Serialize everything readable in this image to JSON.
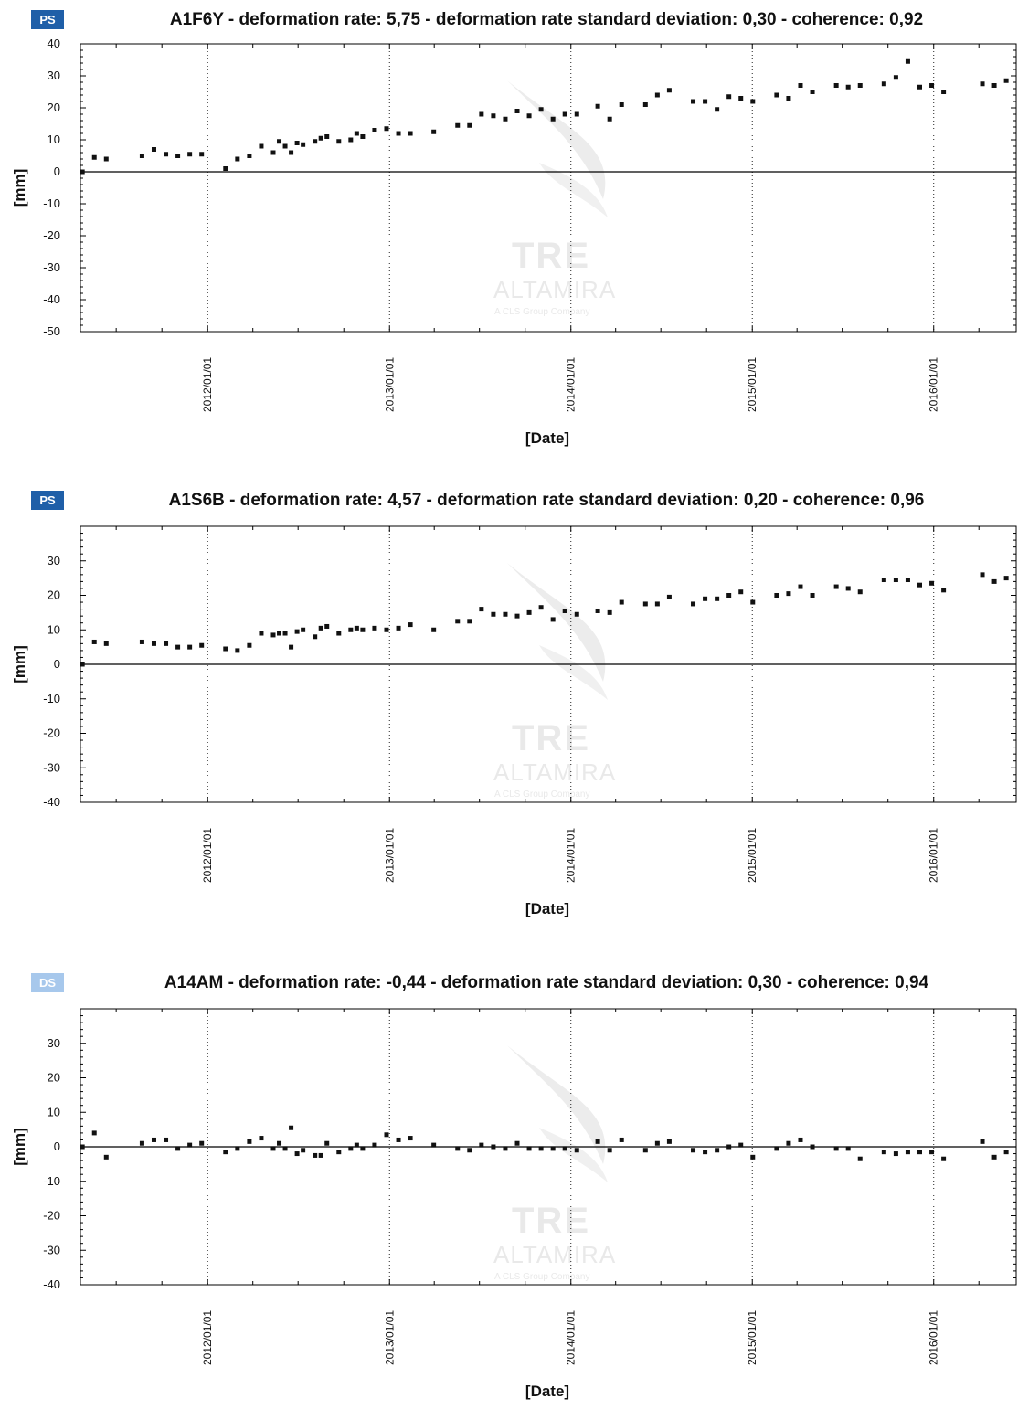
{
  "watermark": {
    "line1": "TRE",
    "line2": "ALTAMIRA",
    "line3": "A CLS Group Company"
  },
  "colors": {
    "ps_badge": "#1f5fa8",
    "ds_badge": "#a7c8ec",
    "points": "#111111"
  },
  "chart_data": [
    {
      "type": "scatter",
      "badge": "PS",
      "title": "A1F6Y - deformation rate: 5,75 - deformation rate standard deviation: 0,30 - coherence: 0,92",
      "xlabel": "[Date]",
      "ylabel": "[mm]",
      "ylim": [
        -50,
        40
      ],
      "yticks": [
        40,
        30,
        20,
        10,
        0,
        -10,
        -20,
        -30,
        -40,
        -50
      ],
      "xlim": [
        "2011-04-20",
        "2016-06-15"
      ],
      "xticks": [
        "2012/01/01",
        "2013/01/01",
        "2014/01/01",
        "2015/01/01",
        "2016/01/01"
      ],
      "grid": "vertical dotted lines at year ticks",
      "points": [
        [
          "2011-04-24",
          0
        ],
        [
          "2011-05-18",
          4.5
        ],
        [
          "2011-06-11",
          4
        ],
        [
          "2011-08-22",
          5
        ],
        [
          "2011-09-15",
          7
        ],
        [
          "2011-10-09",
          5.5
        ],
        [
          "2011-11-02",
          5
        ],
        [
          "2011-11-26",
          5.5
        ],
        [
          "2011-12-20",
          5.5
        ],
        [
          "2012-02-06",
          1
        ],
        [
          "2012-03-01",
          4
        ],
        [
          "2012-03-25",
          5
        ],
        [
          "2012-04-18",
          8
        ],
        [
          "2012-05-12",
          6
        ],
        [
          "2012-05-24",
          9.5
        ],
        [
          "2012-06-05",
          8
        ],
        [
          "2012-06-17",
          6
        ],
        [
          "2012-06-29",
          9
        ],
        [
          "2012-07-11",
          8.5
        ],
        [
          "2012-08-04",
          9.5
        ],
        [
          "2012-08-16",
          10.5
        ],
        [
          "2012-08-28",
          11
        ],
        [
          "2012-09-21",
          9.5
        ],
        [
          "2012-10-15",
          10
        ],
        [
          "2012-10-27",
          12
        ],
        [
          "2012-11-08",
          11
        ],
        [
          "2012-12-02",
          13
        ],
        [
          "2012-12-26",
          13.5
        ],
        [
          "2013-01-19",
          12
        ],
        [
          "2013-02-12",
          12
        ],
        [
          "2013-03-31",
          12.5
        ],
        [
          "2013-05-18",
          14.5
        ],
        [
          "2013-06-11",
          14.5
        ],
        [
          "2013-07-05",
          18
        ],
        [
          "2013-07-29",
          17.5
        ],
        [
          "2013-08-22",
          16.5
        ],
        [
          "2013-09-15",
          19
        ],
        [
          "2013-10-09",
          17.5
        ],
        [
          "2013-11-02",
          19.5
        ],
        [
          "2013-11-26",
          16.5
        ],
        [
          "2013-12-20",
          18
        ],
        [
          "2014-01-13",
          18
        ],
        [
          "2014-02-24",
          20.5
        ],
        [
          "2014-03-20",
          16.5
        ],
        [
          "2014-04-13",
          21
        ],
        [
          "2014-05-31",
          21
        ],
        [
          "2014-06-24",
          24
        ],
        [
          "2014-07-18",
          25.5
        ],
        [
          "2014-09-04",
          22
        ],
        [
          "2014-09-28",
          22
        ],
        [
          "2014-10-22",
          19.5
        ],
        [
          "2014-11-15",
          23.5
        ],
        [
          "2014-12-09",
          23
        ],
        [
          "2015-01-02",
          22
        ],
        [
          "2015-02-19",
          24
        ],
        [
          "2015-03-15",
          23
        ],
        [
          "2015-04-08",
          27
        ],
        [
          "2015-05-02",
          25
        ],
        [
          "2015-06-19",
          27
        ],
        [
          "2015-07-13",
          26.5
        ],
        [
          "2015-08-06",
          27
        ],
        [
          "2015-09-23",
          27.5
        ],
        [
          "2015-10-17",
          29.5
        ],
        [
          "2015-11-10",
          34.5
        ],
        [
          "2015-12-04",
          26.5
        ],
        [
          "2015-12-28",
          27
        ],
        [
          "2016-01-21",
          25
        ],
        [
          "2016-04-08",
          27.5
        ],
        [
          "2016-05-02",
          27
        ],
        [
          "2016-05-26",
          28.5
        ]
      ]
    },
    {
      "type": "scatter",
      "badge": "PS",
      "title": "A1S6B - deformation rate: 4,57 - deformation rate standard deviation: 0,20 - coherence: 0,96",
      "xlabel": "[Date]",
      "ylabel": "[mm]",
      "ylim": [
        -40,
        40
      ],
      "yticks": [
        30,
        20,
        10,
        0,
        -10,
        -20,
        -30,
        -40
      ],
      "xlim": [
        "2011-04-20",
        "2016-06-15"
      ],
      "xticks": [
        "2012/01/01",
        "2013/01/01",
        "2014/01/01",
        "2015/01/01",
        "2016/01/01"
      ],
      "grid": "vertical dotted lines at year ticks",
      "points": [
        [
          "2011-04-24",
          0
        ],
        [
          "2011-05-18",
          6.5
        ],
        [
          "2011-06-11",
          6
        ],
        [
          "2011-08-22",
          6.5
        ],
        [
          "2011-09-15",
          6
        ],
        [
          "2011-10-09",
          6
        ],
        [
          "2011-11-02",
          5
        ],
        [
          "2011-11-26",
          5
        ],
        [
          "2011-12-20",
          5.5
        ],
        [
          "2012-02-06",
          4.5
        ],
        [
          "2012-03-01",
          4
        ],
        [
          "2012-03-25",
          5.5
        ],
        [
          "2012-04-18",
          9
        ],
        [
          "2012-05-12",
          8.5
        ],
        [
          "2012-05-24",
          9
        ],
        [
          "2012-06-05",
          9
        ],
        [
          "2012-06-17",
          5
        ],
        [
          "2012-06-29",
          9.5
        ],
        [
          "2012-07-11",
          10
        ],
        [
          "2012-08-04",
          8
        ],
        [
          "2012-08-16",
          10.5
        ],
        [
          "2012-08-28",
          11
        ],
        [
          "2012-09-21",
          9
        ],
        [
          "2012-10-15",
          10
        ],
        [
          "2012-10-27",
          10.5
        ],
        [
          "2012-11-08",
          10
        ],
        [
          "2012-12-02",
          10.5
        ],
        [
          "2012-12-26",
          10
        ],
        [
          "2013-01-19",
          10.5
        ],
        [
          "2013-02-12",
          11.5
        ],
        [
          "2013-03-31",
          10
        ],
        [
          "2013-05-18",
          12.5
        ],
        [
          "2013-06-11",
          12.5
        ],
        [
          "2013-07-05",
          16
        ],
        [
          "2013-07-29",
          14.5
        ],
        [
          "2013-08-22",
          14.5
        ],
        [
          "2013-09-15",
          14
        ],
        [
          "2013-10-09",
          15
        ],
        [
          "2013-11-02",
          16.5
        ],
        [
          "2013-11-26",
          13
        ],
        [
          "2013-12-20",
          15.5
        ],
        [
          "2014-01-13",
          14.5
        ],
        [
          "2014-02-24",
          15.5
        ],
        [
          "2014-03-20",
          15
        ],
        [
          "2014-04-13",
          18
        ],
        [
          "2014-05-31",
          17.5
        ],
        [
          "2014-06-24",
          17.5
        ],
        [
          "2014-07-18",
          19.5
        ],
        [
          "2014-09-04",
          17.5
        ],
        [
          "2014-09-28",
          19
        ],
        [
          "2014-10-22",
          19
        ],
        [
          "2014-11-15",
          20
        ],
        [
          "2014-12-09",
          21
        ],
        [
          "2015-01-02",
          18
        ],
        [
          "2015-02-19",
          20
        ],
        [
          "2015-03-15",
          20.5
        ],
        [
          "2015-04-08",
          22.5
        ],
        [
          "2015-05-02",
          20
        ],
        [
          "2015-06-19",
          22.5
        ],
        [
          "2015-07-13",
          22
        ],
        [
          "2015-08-06",
          21
        ],
        [
          "2015-09-23",
          24.5
        ],
        [
          "2015-10-17",
          24.5
        ],
        [
          "2015-11-10",
          24.5
        ],
        [
          "2015-12-04",
          23
        ],
        [
          "2015-12-28",
          23.5
        ],
        [
          "2016-01-21",
          21.5
        ],
        [
          "2016-04-08",
          26
        ],
        [
          "2016-05-02",
          24
        ],
        [
          "2016-05-26",
          25
        ]
      ]
    },
    {
      "type": "scatter",
      "badge": "DS",
      "title": "A14AM - deformation rate: -0,44 - deformation rate standard deviation: 0,30 - coherence: 0,94",
      "xlabel": "[Date]",
      "ylabel": "[mm]",
      "ylim": [
        -40,
        40
      ],
      "yticks": [
        30,
        20,
        10,
        0,
        -10,
        -20,
        -30,
        -40
      ],
      "xlim": [
        "2011-04-20",
        "2016-06-15"
      ],
      "xticks": [
        "2012/01/01",
        "2013/01/01",
        "2014/01/01",
        "2015/01/01",
        "2016/01/01"
      ],
      "grid": "vertical dotted lines at year ticks",
      "points": [
        [
          "2011-04-24",
          0
        ],
        [
          "2011-05-18",
          4
        ],
        [
          "2011-06-11",
          -3
        ],
        [
          "2011-08-22",
          1
        ],
        [
          "2011-09-15",
          2
        ],
        [
          "2011-10-09",
          2
        ],
        [
          "2011-11-02",
          -0.5
        ],
        [
          "2011-11-26",
          0.5
        ],
        [
          "2011-12-20",
          1
        ],
        [
          "2012-02-06",
          -1.5
        ],
        [
          "2012-03-01",
          -0.5
        ],
        [
          "2012-03-25",
          1.5
        ],
        [
          "2012-04-18",
          2.5
        ],
        [
          "2012-05-12",
          -0.5
        ],
        [
          "2012-05-24",
          1
        ],
        [
          "2012-06-05",
          -0.5
        ],
        [
          "2012-06-17",
          5.5
        ],
        [
          "2012-06-29",
          -2
        ],
        [
          "2012-07-11",
          -1
        ],
        [
          "2012-08-04",
          -2.5
        ],
        [
          "2012-08-16",
          -2.5
        ],
        [
          "2012-08-28",
          1
        ],
        [
          "2012-09-21",
          -1.5
        ],
        [
          "2012-10-15",
          -0.5
        ],
        [
          "2012-10-27",
          0.5
        ],
        [
          "2012-11-08",
          -0.5
        ],
        [
          "2012-12-02",
          0.5
        ],
        [
          "2012-12-26",
          3.5
        ],
        [
          "2013-01-19",
          2
        ],
        [
          "2013-02-12",
          2.5
        ],
        [
          "2013-03-31",
          0.5
        ],
        [
          "2013-05-18",
          -0.5
        ],
        [
          "2013-06-11",
          -1
        ],
        [
          "2013-07-05",
          0.5
        ],
        [
          "2013-07-29",
          0
        ],
        [
          "2013-08-22",
          -0.5
        ],
        [
          "2013-09-15",
          1
        ],
        [
          "2013-10-09",
          -0.5
        ],
        [
          "2013-11-02",
          -0.5
        ],
        [
          "2013-11-26",
          -0.5
        ],
        [
          "2013-12-20",
          -0.5
        ],
        [
          "2014-01-13",
          -1
        ],
        [
          "2014-02-24",
          1.5
        ],
        [
          "2014-03-20",
          -1
        ],
        [
          "2014-04-13",
          2
        ],
        [
          "2014-05-31",
          -1
        ],
        [
          "2014-06-24",
          1
        ],
        [
          "2014-07-18",
          1.5
        ],
        [
          "2014-09-04",
          -1
        ],
        [
          "2014-09-28",
          -1.5
        ],
        [
          "2014-10-22",
          -1
        ],
        [
          "2014-11-15",
          0
        ],
        [
          "2014-12-09",
          0.5
        ],
        [
          "2015-01-02",
          -3
        ],
        [
          "2015-02-19",
          -0.5
        ],
        [
          "2015-03-15",
          1
        ],
        [
          "2015-04-08",
          2
        ],
        [
          "2015-05-02",
          0
        ],
        [
          "2015-06-19",
          -0.5
        ],
        [
          "2015-07-13",
          -0.5
        ],
        [
          "2015-08-06",
          -3.5
        ],
        [
          "2015-09-23",
          -1.5
        ],
        [
          "2015-10-17",
          -2
        ],
        [
          "2015-11-10",
          -1.5
        ],
        [
          "2015-12-04",
          -1.5
        ],
        [
          "2015-12-28",
          -1.5
        ],
        [
          "2016-01-21",
          -3.5
        ],
        [
          "2016-04-08",
          1.5
        ],
        [
          "2016-05-02",
          -3
        ],
        [
          "2016-05-26",
          -1.5
        ]
      ]
    }
  ]
}
